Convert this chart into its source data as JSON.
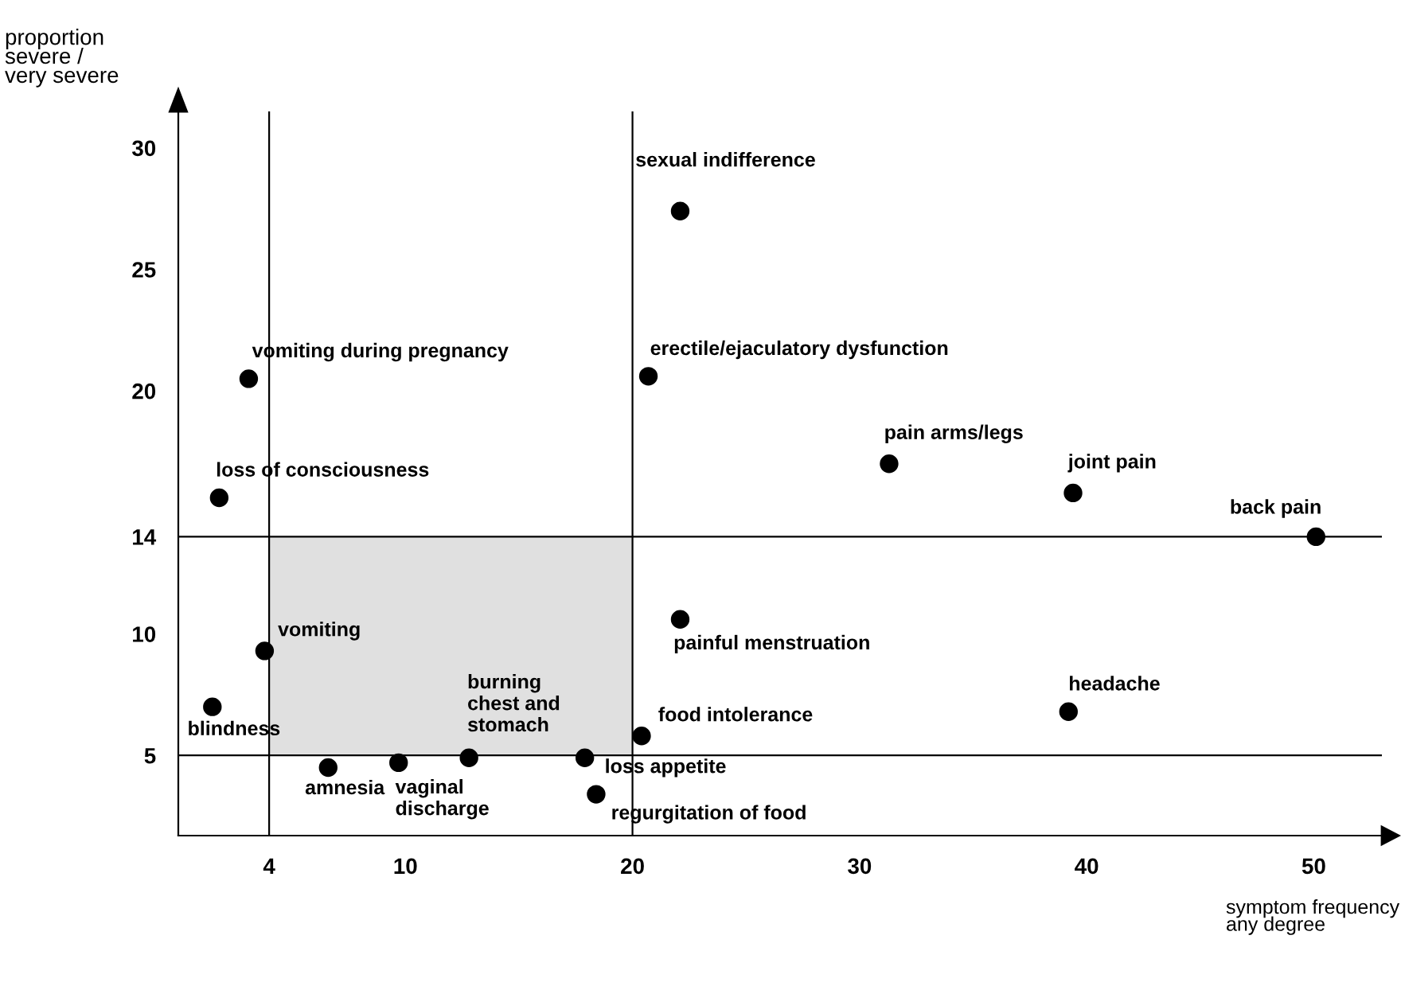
{
  "chart_data": {
    "type": "scatter",
    "xlabel": "symptom frequency\nany degree",
    "ylabel": "proportion\nsevere /\nvery severe",
    "x": [
      22.1,
      3.1,
      20.7,
      31.3,
      39.4,
      50.1,
      1.8,
      22.1,
      3.8,
      39.2,
      1.5,
      20.4,
      12.8,
      17.9,
      9.7,
      6.6,
      18.4
    ],
    "series": [
      {
        "color": "#000000",
        "values": [
          27.4,
          20.5,
          20.6,
          17.0,
          15.8,
          14.0,
          15.6,
          10.6,
          9.3,
          6.8,
          7.0,
          5.8,
          4.9,
          4.9,
          4.7,
          4.5,
          3.4
        ]
      }
    ],
    "marker": "circle",
    "xlim": [
      0,
      53
    ],
    "ylim": [
      1.7,
      31.5
    ],
    "xticks": [
      4,
      10,
      20,
      30,
      40,
      50
    ],
    "yticks": [
      5,
      10,
      14,
      20,
      25,
      30
    ],
    "grid": false,
    "legend": false,
    "ref_lines": [
      {
        "axis": "x",
        "value": 4
      },
      {
        "axis": "x",
        "value": 20
      },
      {
        "axis": "y",
        "value": 5
      },
      {
        "axis": "y",
        "value": 14
      }
    ],
    "bands": [
      {
        "axis": "y",
        "from": 5,
        "to": 14,
        "color": "#e0e0e0"
      }
    ],
    "annotations": [
      {
        "text": "sexual indifference",
        "x": 22.1,
        "y": 27.4
      },
      {
        "text": "vomiting during pregnancy",
        "x": 3.1,
        "y": 20.5
      },
      {
        "text": "erectile/ejaculatory dysfunction",
        "x": 20.7,
        "y": 20.6
      },
      {
        "text": "pain arms/legs",
        "x": 31.3,
        "y": 17.0
      },
      {
        "text": "joint pain",
        "x": 39.4,
        "y": 15.8
      },
      {
        "text": "back pain",
        "x": 50.1,
        "y": 14.0
      },
      {
        "text": "loss of consciousness",
        "x": 1.8,
        "y": 15.6
      },
      {
        "text": "painful menstruation",
        "x": 22.1,
        "y": 10.6
      },
      {
        "text": "vomiting",
        "x": 3.8,
        "y": 9.3
      },
      {
        "text": "headache",
        "x": 39.2,
        "y": 6.8
      },
      {
        "text": "blindness",
        "x": 1.5,
        "y": 7.0
      },
      {
        "text": "food intolerance",
        "x": 20.4,
        "y": 5.8
      },
      {
        "text": "burning\nchest and\nstomach",
        "x": 12.8,
        "y": 4.9
      },
      {
        "text": "loss appetite",
        "x": 17.9,
        "y": 4.9
      },
      {
        "text": "vaginal\ndischarge",
        "x": 9.7,
        "y": 4.7
      },
      {
        "text": "amnesia",
        "x": 6.6,
        "y": 4.5
      },
      {
        "text": "regurgitation of food",
        "x": 18.4,
        "y": 3.4
      }
    ]
  }
}
